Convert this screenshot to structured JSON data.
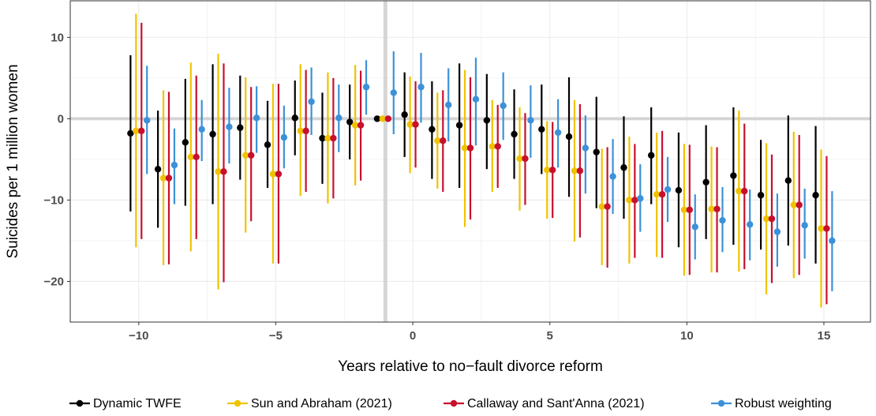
{
  "chart_data": {
    "type": "scatter",
    "subtype": "event-study-errorbar",
    "title": "",
    "xlabel": "Years relative to no−fault divorce reform",
    "ylabel": "Suicides per 1 million women",
    "xlim": [
      -12.5,
      16.7
    ],
    "ylim": [
      -25.0,
      14.5
    ],
    "x_ticks": [
      -10,
      -5,
      0,
      5,
      10,
      15
    ],
    "x_tick_labels": [
      "−10",
      "−5",
      "0",
      "5",
      "10",
      "15"
    ],
    "y_ticks": [
      -20,
      -10,
      0,
      10
    ],
    "y_tick_labels": [
      "−20",
      "−10",
      "0",
      "10"
    ],
    "reference_lines": {
      "x": -1,
      "y": 0
    },
    "grid": true,
    "legend_position": "bottom",
    "categories": [
      -10,
      -9,
      -8,
      -7,
      -6,
      -5,
      -4,
      -3,
      -2,
      -1,
      0,
      1,
      2,
      3,
      4,
      5,
      6,
      7,
      8,
      9,
      10,
      11,
      12,
      13,
      14,
      15
    ],
    "series": [
      {
        "name": "Dynamic TWFE",
        "color": "#000000",
        "offset": -0.3,
        "estimate": [
          -1.8,
          -6.2,
          -2.9,
          -1.9,
          -1.1,
          -3.2,
          0.1,
          -2.4,
          -0.4,
          0.0,
          0.5,
          -1.3,
          -0.8,
          -0.2,
          -1.9,
          -1.3,
          -2.2,
          -4.1,
          -6.0,
          -4.5,
          -8.8,
          -7.8,
          -7.0,
          -9.4,
          -7.6,
          -9.4
        ],
        "lower": [
          -11.4,
          -13.4,
          -10.7,
          -10.5,
          -7.5,
          -8.5,
          -4.5,
          -8.0,
          -5.0,
          0.0,
          -4.7,
          -7.4,
          -8.5,
          -6.2,
          -7.4,
          -6.8,
          -9.6,
          -11.0,
          -12.3,
          -10.5,
          -15.8,
          -14.8,
          -15.5,
          -16.1,
          -15.6,
          -17.8
        ],
        "upper": [
          7.8,
          1.0,
          4.9,
          6.7,
          5.3,
          2.2,
          4.7,
          3.2,
          4.2,
          0.0,
          5.7,
          4.6,
          6.8,
          5.5,
          3.6,
          4.2,
          5.1,
          2.7,
          0.3,
          1.4,
          -1.7,
          -0.8,
          1.4,
          -2.6,
          0.4,
          -0.9
        ]
      },
      {
        "name": "Sun and Abraham (2021)",
        "color": "#f0c300",
        "offset": -0.1,
        "estimate": [
          -1.5,
          -7.3,
          -4.7,
          -6.5,
          -4.5,
          -6.8,
          -1.5,
          -2.4,
          -0.8,
          0.0,
          -0.7,
          -2.7,
          -3.6,
          -3.4,
          -4.9,
          -6.3,
          -6.4,
          -10.8,
          -10.0,
          -9.3,
          -11.2,
          -11.1,
          -8.9,
          -12.3,
          -10.6,
          -13.5
        ],
        "lower": [
          -15.8,
          -18.0,
          -16.3,
          -21.0,
          -14.0,
          -17.8,
          -9.5,
          -10.4,
          -8.2,
          0.0,
          -6.7,
          -8.6,
          -13.3,
          -9.0,
          -11.3,
          -12.3,
          -15.1,
          -18.0,
          -17.8,
          -17.0,
          -19.3,
          -18.9,
          -18.8,
          -21.6,
          -19.6,
          -23.2
        ],
        "upper": [
          12.9,
          3.5,
          6.9,
          8.0,
          5.1,
          4.3,
          6.7,
          5.7,
          6.6,
          0.0,
          5.2,
          3.2,
          6.0,
          2.3,
          1.4,
          -0.3,
          2.3,
          -3.7,
          -2.2,
          -1.7,
          -3.1,
          -3.4,
          1.0,
          -3.0,
          -1.6,
          -3.8
        ]
      },
      {
        "name": "Callaway and Sant'Anna (2021)",
        "color": "#c8102e",
        "offset": 0.1,
        "estimate": [
          -1.5,
          -7.3,
          -4.7,
          -6.5,
          -4.5,
          -6.8,
          -1.5,
          -2.4,
          -0.8,
          0.0,
          -0.7,
          -2.7,
          -3.6,
          -3.4,
          -4.9,
          -6.3,
          -6.4,
          -10.8,
          -10.0,
          -9.3,
          -11.2,
          -11.1,
          -8.9,
          -12.3,
          -10.6,
          -13.5
        ],
        "lower": [
          -14.8,
          -17.9,
          -14.8,
          -20.1,
          -12.6,
          -17.8,
          -9.0,
          -9.8,
          -7.6,
          0.0,
          -6.0,
          -9.0,
          -12.4,
          -8.5,
          -10.6,
          -12.2,
          -14.6,
          -18.3,
          -17.1,
          -17.1,
          -19.2,
          -18.9,
          -18.5,
          -20.2,
          -19.2,
          -22.8
        ],
        "upper": [
          11.8,
          3.3,
          5.3,
          6.8,
          3.9,
          4.3,
          6.0,
          5.0,
          5.9,
          0.0,
          4.6,
          3.5,
          5.1,
          1.7,
          0.7,
          -0.4,
          1.8,
          -3.5,
          -3.1,
          -1.5,
          -3.2,
          -3.5,
          -0.6,
          -4.4,
          -2.0,
          -4.6
        ]
      },
      {
        "name": "Robust weighting",
        "color": "#3c91d8",
        "offset": 0.3,
        "estimate": [
          -0.2,
          -5.7,
          -1.3,
          -1.0,
          0.1,
          -2.3,
          2.1,
          0.1,
          3.9,
          3.2,
          3.9,
          1.7,
          2.4,
          1.6,
          -0.2,
          -1.7,
          -3.6,
          -7.1,
          -9.8,
          -8.7,
          -13.3,
          -12.5,
          -13.0,
          -13.9,
          -13.1,
          -15.0
        ],
        "lower": [
          -6.8,
          -10.5,
          -5.2,
          -5.5,
          -4.2,
          -6.1,
          -2.0,
          -4.1,
          0.5,
          -1.9,
          -0.5,
          -2.8,
          -3.3,
          -2.6,
          -4.8,
          -6.0,
          -9.2,
          -11.7,
          -13.9,
          -12.7,
          -17.3,
          -16.4,
          -17.4,
          -18.2,
          -17.2,
          -21.2
        ],
        "upper": [
          6.5,
          -1.2,
          2.3,
          3.8,
          4.0,
          1.6,
          6.3,
          4.2,
          7.2,
          8.3,
          8.1,
          6.2,
          7.5,
          5.7,
          4.1,
          2.4,
          0.4,
          -2.5,
          -5.6,
          -4.7,
          -9.3,
          -8.4,
          -8.7,
          -9.2,
          -8.6,
          -8.9
        ]
      }
    ]
  }
}
